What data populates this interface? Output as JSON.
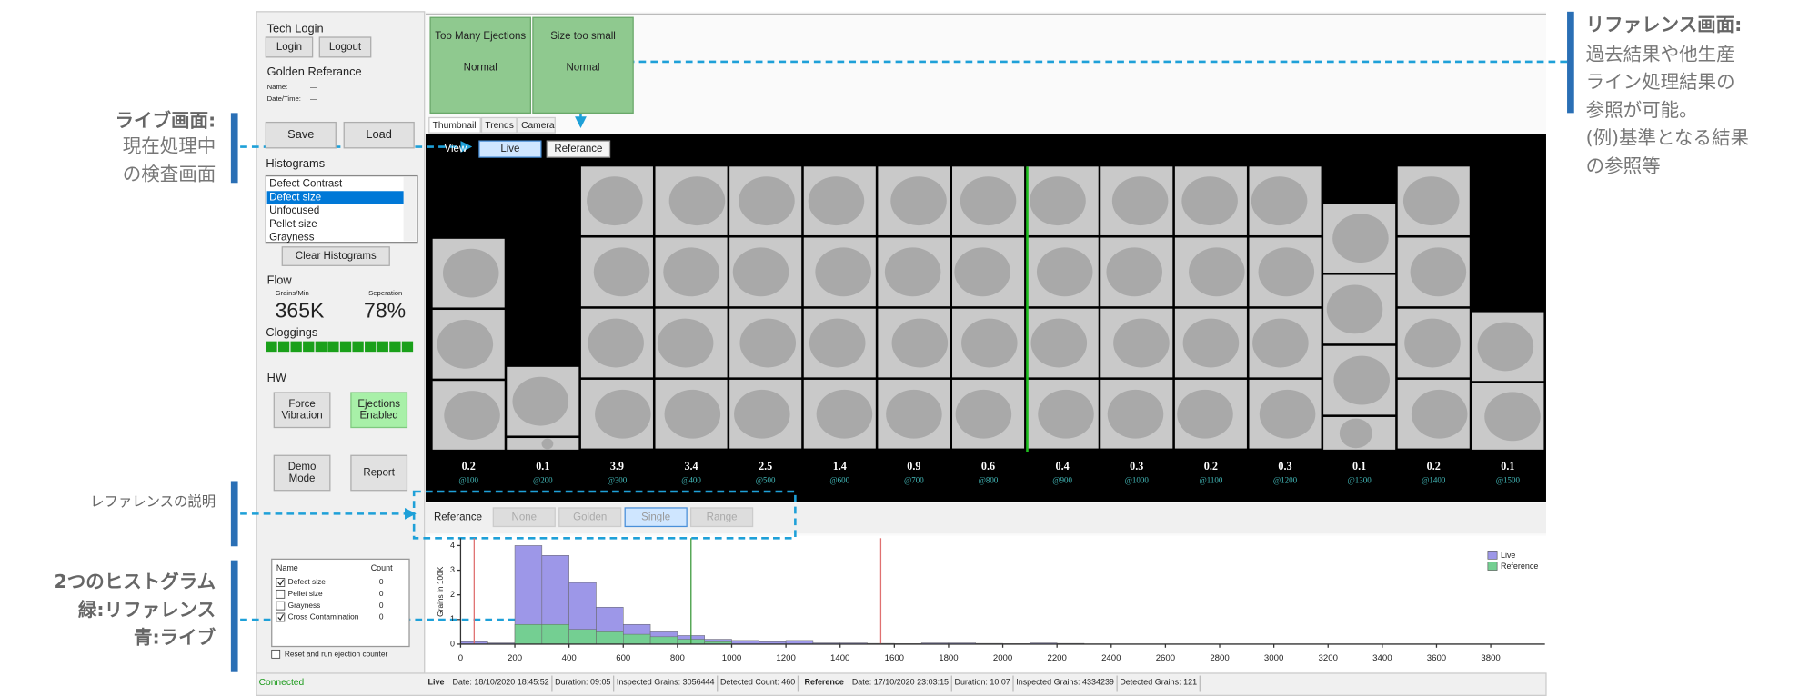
{
  "annotations": {
    "live": {
      "title": "ライブ画面:",
      "lines": [
        "現在処理中",
        "の検査画面"
      ]
    },
    "reference": {
      "title": "リファレンス画面:",
      "lines": [
        "過去結果や他生産",
        "ライン処理結果の",
        "参照が可能。",
        "(例)基準となる結果",
        "の参照等"
      ]
    },
    "reference_note": "レファレンスの説明",
    "histograms": {
      "title": "2つのヒストグラム",
      "lines": [
        "緑:リファレンス",
        "青:ライブ"
      ]
    }
  },
  "sidebar": {
    "tech_login": {
      "title": "Tech Login",
      "buttons": [
        "Login",
        "Logout"
      ]
    },
    "golden_reference": {
      "title": "Golden Referance",
      "name": "Name:",
      "name_value": "—",
      "date": "Date/Time:",
      "date_value": "—"
    },
    "file_buttons": [
      "Save",
      "Load"
    ],
    "histograms": {
      "title": "Histograms",
      "items": [
        "Defect Contrast",
        "Defect size",
        "Unfocused",
        "Pellet size",
        "Grayness"
      ],
      "selected": 1,
      "clear": "Clear Histograms"
    },
    "flow": {
      "title": "Flow",
      "grains_label": "Grains/Min",
      "grains": "365K",
      "separation_label": "Seperation",
      "separation": "78%",
      "cloggings": "Cloggings"
    },
    "hw": {
      "title": "HW",
      "buttons": [
        [
          "Force",
          "Vibration"
        ],
        [
          "Ejections",
          "Enabled"
        ]
      ]
    },
    "mode_buttons": [
      [
        "Demo",
        "Mode"
      ],
      [
        "Report"
      ]
    ],
    "counter": {
      "headers": [
        "Name",
        "Count"
      ],
      "rows": [
        {
          "name": "Defect size",
          "count": 0,
          "checked": true
        },
        {
          "name": "Pellet size",
          "count": 0,
          "checked": false
        },
        {
          "name": "Grayness",
          "count": 0,
          "checked": false
        },
        {
          "name": "Cross Contamination",
          "count": 0,
          "checked": true
        }
      ],
      "reset": "Reset and run ejection counter"
    },
    "connection": "Connected"
  },
  "status_boxes": [
    {
      "title": "Too Many Ejections",
      "state": "Normal"
    },
    {
      "title": "Size too small",
      "state": "Normal"
    }
  ],
  "tabs": [
    "Thumbnail",
    "Trends",
    "Camera"
  ],
  "view_bar": {
    "label": "View",
    "buttons": [
      "Live",
      "Referance"
    ],
    "active": 0
  },
  "thumbnails": [
    {
      "value": "0.2",
      "position": "@100"
    },
    {
      "value": "0.1",
      "position": "@200"
    },
    {
      "value": "3.9",
      "position": "@300"
    },
    {
      "value": "3.4",
      "position": "@400"
    },
    {
      "value": "2.5",
      "position": "@500"
    },
    {
      "value": "1.4",
      "position": "@600"
    },
    {
      "value": "0.9",
      "position": "@700"
    },
    {
      "value": "0.6",
      "position": "@800"
    },
    {
      "value": "0.4",
      "position": "@900"
    },
    {
      "value": "0.3",
      "position": "@1000"
    },
    {
      "value": "0.2",
      "position": "@1100"
    },
    {
      "value": "0.3",
      "position": "@1200"
    },
    {
      "value": "0.1",
      "position": "@1300"
    },
    {
      "value": "0.2",
      "position": "@1400"
    },
    {
      "value": "0.1",
      "position": "@1500"
    }
  ],
  "reference_bar": {
    "label": "Referance",
    "buttons": [
      "None",
      "Golden",
      "Single",
      "Range"
    ],
    "active": 2
  },
  "chart_data": {
    "type": "histogram",
    "ylabel": "Grains in 100K",
    "bins": [
      0,
      100,
      200,
      300,
      400,
      500,
      600,
      700,
      800,
      900,
      1000,
      1100,
      1200,
      1300,
      1400,
      1500,
      1600,
      1700,
      1800,
      1900,
      2000,
      2100,
      2200,
      2300,
      2400,
      2500
    ],
    "series": [
      {
        "name": "Live",
        "color": "#9d97e8",
        "values": [
          0.1,
          0.05,
          4.0,
          3.6,
          2.5,
          1.5,
          0.8,
          0.5,
          0.35,
          0.2,
          0.15,
          0.1,
          0.15,
          0.05,
          0.05,
          0.03,
          0.02,
          0.05,
          0.05,
          0.03,
          0.02,
          0.05,
          0.03,
          0.01,
          0
        ]
      },
      {
        "name": "Reference",
        "color": "#74cf92",
        "values": [
          0,
          0,
          0.8,
          0.8,
          0.6,
          0.5,
          0.4,
          0.3,
          0.2,
          0.1,
          0,
          0,
          0,
          0,
          0,
          0,
          0,
          0,
          0,
          0,
          0,
          0,
          0,
          0,
          0
        ]
      }
    ],
    "markers": [
      {
        "value": 50,
        "color": "#e07070"
      },
      {
        "value": 850,
        "color": "#3c9a3c"
      },
      {
        "value": 1550,
        "color": "#e07070"
      }
    ],
    "xlim": [
      0,
      4000
    ],
    "xticks": [
      0,
      200,
      400,
      600,
      800,
      1000,
      1200,
      1400,
      1600,
      1800,
      2000,
      2200,
      2400,
      2600,
      2800,
      3000,
      3200,
      3400,
      3600,
      3800
    ],
    "ylim": [
      0,
      4.3
    ],
    "yticks": [
      0,
      1,
      2,
      3,
      4
    ]
  },
  "status_bar": {
    "live": {
      "label": "Live",
      "fields": [
        "Date: 18/10/2020 18:45:52",
        "Duration: 09:05",
        "Inspected Grains: 3056444",
        "Detected Count: 460"
      ]
    },
    "reference": {
      "label": "Reference",
      "fields": [
        "Date: 17/10/2020 23:03:15",
        "Duration: 10:07",
        "Inspected Grains: 4334239",
        "Detected Grains: 121"
      ]
    }
  }
}
